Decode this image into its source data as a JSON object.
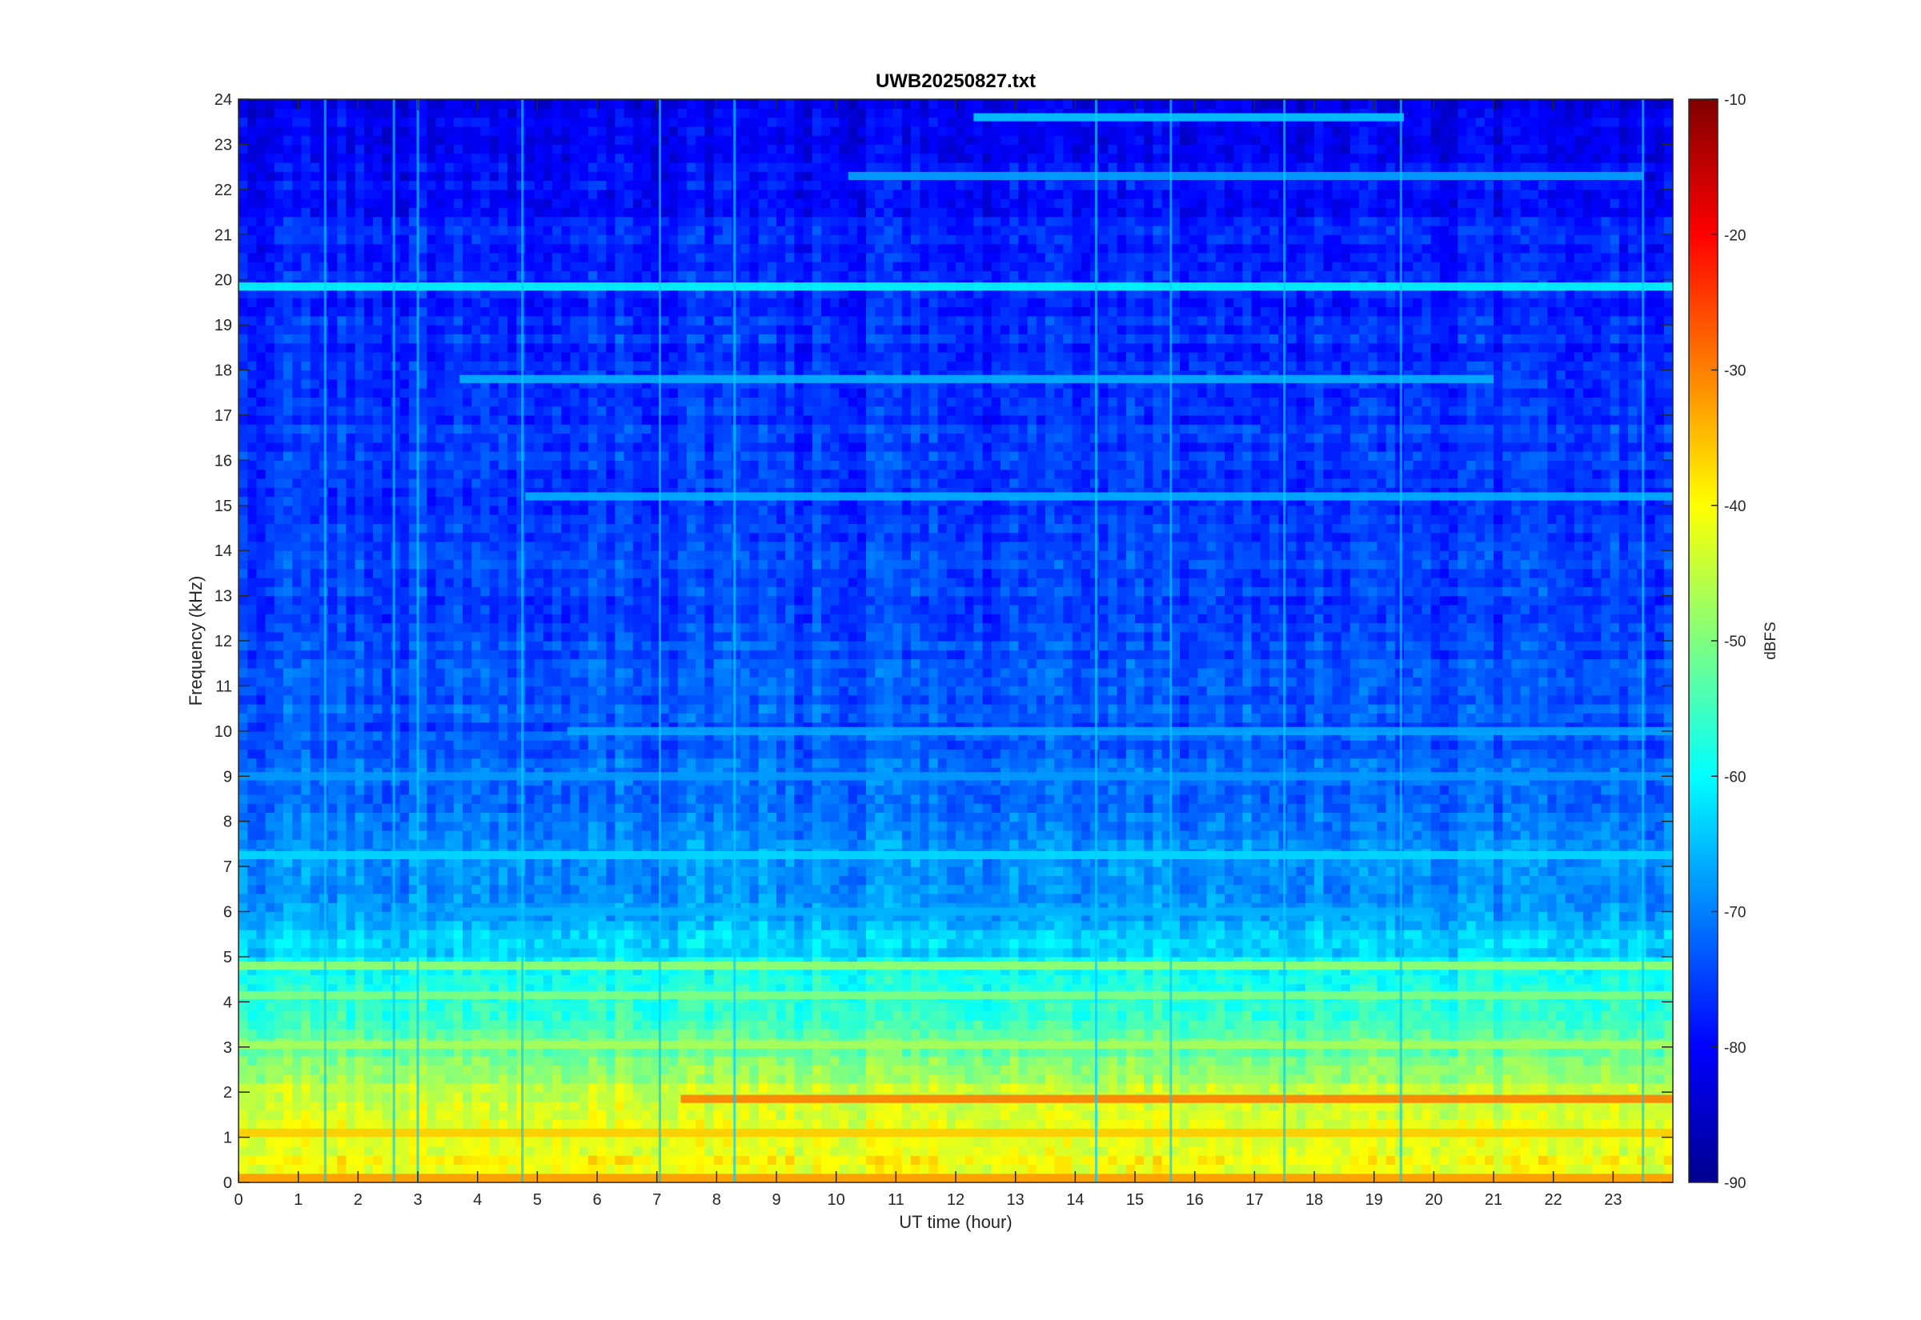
{
  "chart_data": {
    "type": "heatmap",
    "title": "UWB20250827.txt",
    "xlabel": "UT time (hour)",
    "ylabel": "Frequency (kHz)",
    "colorbar_label": "dBFS",
    "colormap": "jet",
    "xlim": [
      0,
      24
    ],
    "ylim": [
      0,
      24
    ],
    "clim": [
      -90,
      -10
    ],
    "xticks": [
      "0",
      "1",
      "2",
      "3",
      "4",
      "5",
      "6",
      "7",
      "8",
      "9",
      "10",
      "11",
      "12",
      "13",
      "14",
      "15",
      "16",
      "17",
      "18",
      "19",
      "20",
      "21",
      "22",
      "23"
    ],
    "yticks": [
      "0",
      "1",
      "2",
      "3",
      "4",
      "5",
      "6",
      "7",
      "8",
      "9",
      "10",
      "11",
      "12",
      "13",
      "14",
      "15",
      "16",
      "17",
      "18",
      "19",
      "20",
      "21",
      "22",
      "23",
      "24"
    ],
    "colorbar_ticks": [
      "-10",
      "-20",
      "-30",
      "-40",
      "-50",
      "-60",
      "-70",
      "-80",
      "-90"
    ],
    "level_profile_by_frequency": [
      {
        "freq_khz": 0,
        "dbfs": -40
      },
      {
        "freq_khz": 1,
        "dbfs": -42
      },
      {
        "freq_khz": 2,
        "dbfs": -45
      },
      {
        "freq_khz": 3,
        "dbfs": -52
      },
      {
        "freq_khz": 4,
        "dbfs": -56
      },
      {
        "freq_khz": 5,
        "dbfs": -62
      },
      {
        "freq_khz": 6,
        "dbfs": -67
      },
      {
        "freq_khz": 8,
        "dbfs": -70
      },
      {
        "freq_khz": 10,
        "dbfs": -73
      },
      {
        "freq_khz": 14,
        "dbfs": -75
      },
      {
        "freq_khz": 18,
        "dbfs": -76
      },
      {
        "freq_khz": 21,
        "dbfs": -78
      },
      {
        "freq_khz": 24,
        "dbfs": -82
      }
    ],
    "horizontal_lines": [
      {
        "freq_khz": 19.85,
        "t_start": 0,
        "t_end": 24,
        "dbfs": -60
      },
      {
        "freq_khz": 17.8,
        "t_start": 3.7,
        "t_end": 21,
        "dbfs": -66
      },
      {
        "freq_khz": 23.6,
        "t_start": 12.3,
        "t_end": 19.5,
        "dbfs": -64
      },
      {
        "freq_khz": 22.3,
        "t_start": 10.2,
        "t_end": 23.5,
        "dbfs": -67
      },
      {
        "freq_khz": 15.2,
        "t_start": 4.8,
        "t_end": 24,
        "dbfs": -66
      },
      {
        "freq_khz": 10.0,
        "t_start": 5.5,
        "t_end": 24,
        "dbfs": -67
      },
      {
        "freq_khz": 9.0,
        "t_start": 0,
        "t_end": 24,
        "dbfs": -68
      },
      {
        "freq_khz": 7.25,
        "t_start": 0,
        "t_end": 24,
        "dbfs": -63
      },
      {
        "freq_khz": 6.0,
        "t_start": 3.7,
        "t_end": 20,
        "dbfs": -66
      },
      {
        "freq_khz": 4.8,
        "t_start": 0,
        "t_end": 24,
        "dbfs": -48
      },
      {
        "freq_khz": 4.15,
        "t_start": 0,
        "t_end": 24,
        "dbfs": -50
      },
      {
        "freq_khz": 3.05,
        "t_start": 0,
        "t_end": 24,
        "dbfs": -47
      },
      {
        "freq_khz": 1.85,
        "t_start": 7.4,
        "t_end": 24,
        "dbfs": -30
      },
      {
        "freq_khz": 1.1,
        "t_start": 0,
        "t_end": 24,
        "dbfs": -36
      },
      {
        "freq_khz": 0.1,
        "t_start": 0,
        "t_end": 24,
        "dbfs": -32
      }
    ],
    "vertical_lines_hours": [
      1.45,
      2.6,
      3.0,
      4.75,
      7.05,
      8.3,
      14.35,
      15.6,
      17.5,
      19.45,
      23.5
    ]
  }
}
